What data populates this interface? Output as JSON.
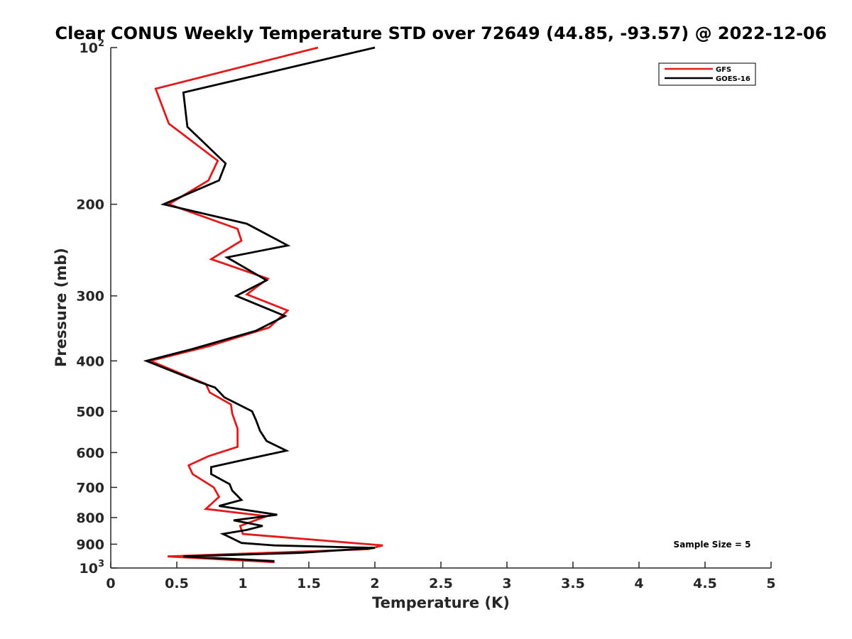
{
  "chart_data": {
    "type": "line",
    "title": "Clear CONUS Weekly Temperature STD over 72649 (44.85, -93.57) @ 2022-12-06",
    "xlabel": "Temperature (K)",
    "ylabel": "Pressure (mb)",
    "xlim": [
      0,
      5
    ],
    "ylim": [
      100,
      1000
    ],
    "yscale": "log",
    "y_reversed": true,
    "grid": false,
    "legend_position": "top-right",
    "x_ticks": [
      {
        "value": 0,
        "label": "0"
      },
      {
        "value": 0.5,
        "label": "0.5"
      },
      {
        "value": 1,
        "label": "1"
      },
      {
        "value": 1.5,
        "label": "1.5"
      },
      {
        "value": 2,
        "label": "2"
      },
      {
        "value": 2.5,
        "label": "2.5"
      },
      {
        "value": 3,
        "label": "3"
      },
      {
        "value": 3.5,
        "label": "3.5"
      },
      {
        "value": 4,
        "label": "4"
      },
      {
        "value": 4.5,
        "label": "4.5"
      },
      {
        "value": 5,
        "label": "5"
      }
    ],
    "y_ticks": [
      {
        "value": 100,
        "base": "10",
        "exp": "2"
      },
      {
        "value": 200,
        "label": "200"
      },
      {
        "value": 300,
        "label": "300"
      },
      {
        "value": 400,
        "label": "400"
      },
      {
        "value": 500,
        "label": "500"
      },
      {
        "value": 600,
        "label": "600"
      },
      {
        "value": 700,
        "label": "700"
      },
      {
        "value": 800,
        "label": "800"
      },
      {
        "value": 900,
        "label": "900"
      },
      {
        "value": 1000,
        "base": "10",
        "exp": "3"
      }
    ],
    "series": [
      {
        "name": "GFS",
        "color": "#e31a1c",
        "x": [
          1.57,
          0.34,
          0.44,
          0.81,
          0.74,
          0.44,
          0.96,
          0.99,
          0.76,
          1.19,
          1.03,
          1.34,
          1.2,
          0.74,
          0.3,
          0.72,
          0.75,
          0.91,
          0.92,
          0.96,
          0.96,
          0.74,
          0.59,
          0.62,
          0.78,
          0.82,
          0.72,
          1.18,
          0.98,
          1.0,
          2.06,
          1.95,
          0.43,
          1.24
        ],
        "y": [
          100,
          120,
          140,
          165,
          180,
          200,
          223,
          235,
          255,
          278,
          298,
          320,
          345,
          375,
          400,
          443,
          460,
          485,
          505,
          540,
          585,
          610,
          635,
          660,
          700,
          730,
          770,
          795,
          830,
          860,
          905,
          920,
          950,
          975
        ]
      },
      {
        "name": "GOES-16",
        "color": "#000000",
        "x": [
          2.0,
          0.55,
          0.58,
          0.87,
          0.82,
          0.4,
          1.03,
          1.34,
          0.88,
          1.18,
          0.95,
          1.32,
          1.1,
          0.61,
          0.27,
          0.68,
          0.79,
          0.86,
          1.07,
          1.1,
          1.13,
          1.18,
          1.33,
          1.03,
          0.76,
          0.76,
          0.9,
          0.92,
          0.99,
          0.82,
          1.26,
          0.93,
          1.15,
          1.03,
          0.85,
          0.93,
          0.99,
          1.24,
          2.0,
          1.44,
          0.55,
          1.24
        ],
        "y": [
          100,
          122,
          142,
          167,
          180,
          200,
          218,
          240,
          253,
          280,
          300,
          328,
          350,
          380,
          400,
          440,
          450,
          470,
          500,
          520,
          545,
          570,
          595,
          618,
          640,
          660,
          690,
          710,
          740,
          760,
          790,
          810,
          830,
          845,
          860,
          880,
          895,
          905,
          915,
          935,
          950,
          970
        ]
      }
    ],
    "annotations": [
      {
        "text": "Sample Size = 5"
      }
    ]
  }
}
